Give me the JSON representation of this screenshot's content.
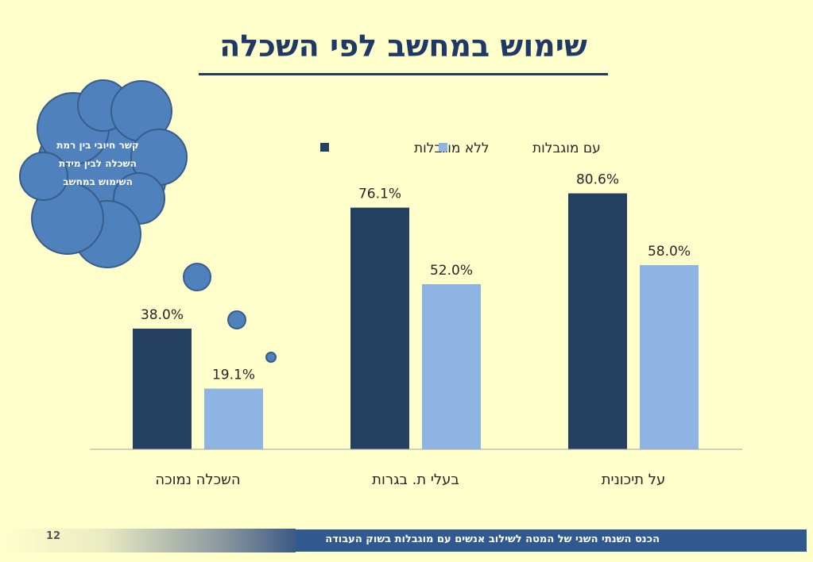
{
  "slide": {
    "title": "שימוש במחשב לפי השכלה",
    "page_number": "12",
    "footer_text": "הכנס השנתי השני של המטה לשילוב אנשים עם מוגבלות בשוק העבודה"
  },
  "callout": {
    "text": "קשר חיובי בין רמת השכלה לבין מידת השימוש במחשב"
  },
  "colors": {
    "background": "#ffffcc",
    "title": "#1f3864",
    "series_without": "#243f60",
    "series_with": "#8eb4e3",
    "cloud_fill": "#4f81bd",
    "cloud_stroke": "#385d8a",
    "footer_bar": "#305a8f"
  },
  "chart_data": {
    "type": "bar",
    "categories": [
      "השכלה נמוכה",
      "בעלי ת. בגרות",
      "על תיכונית"
    ],
    "series": [
      {
        "name": "ללא מוגבלות",
        "values": [
          38.0,
          76.1,
          80.6
        ]
      },
      {
        "name": "עם מוגבלות",
        "values": [
          19.1,
          52.0,
          58.0
        ]
      }
    ],
    "value_format": "percent_1dp",
    "ylim": [
      0,
      100
    ],
    "grid": false,
    "legend": "top-center"
  }
}
